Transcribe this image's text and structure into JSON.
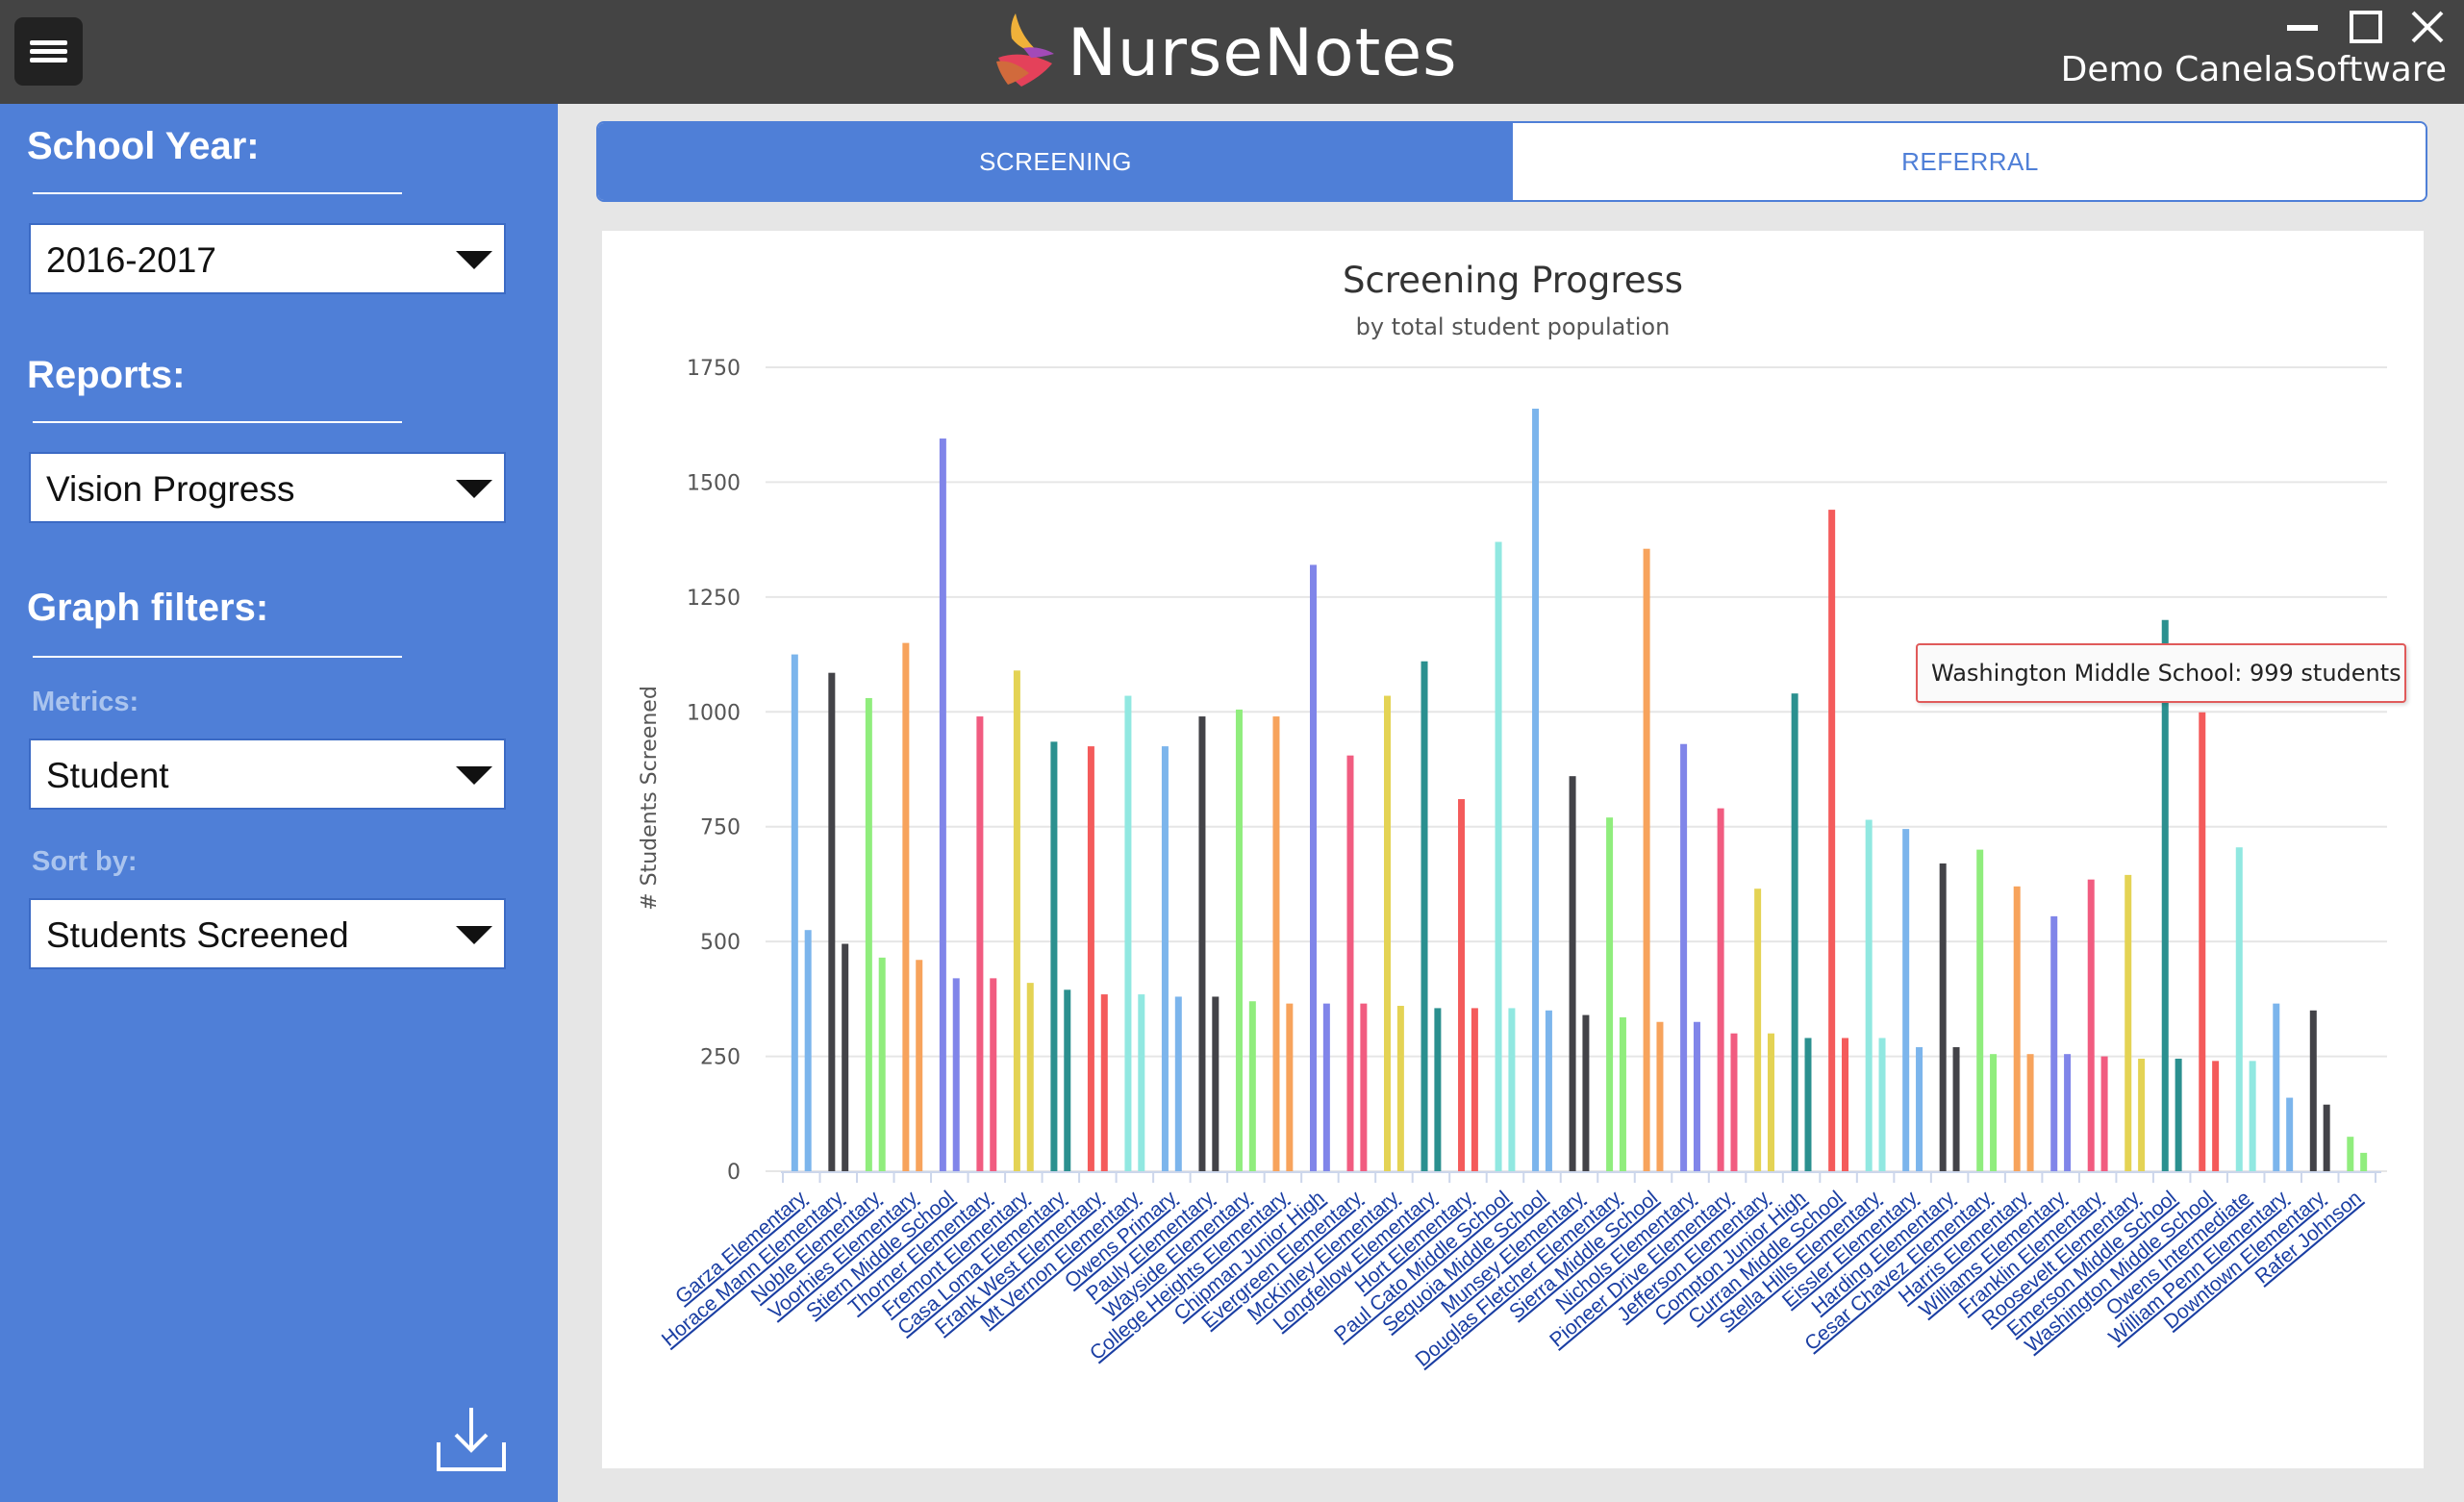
{
  "app": {
    "title": "NurseNotes",
    "user": "Demo CanelaSoftware"
  },
  "sidebar": {
    "school_year_heading": "School Year:",
    "school_year_value": "2016-2017",
    "reports_heading": "Reports:",
    "reports_value": "Vision Progress",
    "graph_filters_heading": "Graph filters:",
    "metrics_label": "Metrics:",
    "metrics_value": "Student",
    "sort_by_label": "Sort by:",
    "sort_by_value": "Students Screened"
  },
  "tabs": {
    "screening": "SCREENING",
    "referral": "REFERRAL",
    "active": "screening"
  },
  "tooltip": {
    "text": "Washington Middle School: 999 students"
  },
  "colors": {
    "titlebar": "#444444",
    "sidebar": "#4f7fd7",
    "accent": "#4f7fd7"
  },
  "chart_data": {
    "type": "bar",
    "title": "Screening Progress",
    "subtitle": "by total student population",
    "ylabel": "# Students Screened",
    "xlabel": "",
    "ylim": [
      0,
      1750
    ],
    "yticks": [
      0,
      250,
      500,
      750,
      1000,
      1250,
      1500,
      1750
    ],
    "grid": true,
    "categories": [
      "Garza Elementary",
      "Horace Mann Elementary",
      "Noble Elementary",
      "Voorhies Elementary",
      "Stiern Middle School",
      "Thorner Elementary",
      "Fremont Elementary",
      "Casa Loma Elementary",
      "Frank West Elementary",
      "Mt Vernon Elementary",
      "Owens Primary",
      "Pauly Elementary",
      "Wayside Elementary",
      "College Heights Elementary",
      "Chipman Junior High",
      "Evergreen Elementary",
      "McKinley Elementary",
      "Longfellow Elementary",
      "Hort Elementary",
      "Paul Cato Middle School",
      "Sequoia Middle School",
      "Munsey Elementary",
      "Douglas Fletcher Elementary",
      "Sierra Middle School",
      "Nichols Elementary",
      "Pioneer Drive Elementary",
      "Jefferson Elementary",
      "Compton Junior High",
      "Curran Middle School",
      "Stella Hills Elementary",
      "Eissler Elementary",
      "Harding Elementary",
      "Cesar Chavez Elementary",
      "Harris Elementary",
      "Williams Elementary",
      "Franklin Elementary",
      "Roosevelt Elementary",
      "Emerson Middle School",
      "Washington Middle School",
      "Owens Intermediate",
      "William Penn Elementary",
      "Downtown Elementary",
      "Rafer Johnson"
    ],
    "series": [
      {
        "values": [
          1125,
          1085,
          1030,
          1150,
          1595,
          990,
          1090,
          935,
          925,
          1035,
          925,
          990,
          1005,
          990,
          1320,
          905,
          1035,
          1110,
          810,
          1370,
          1660,
          860,
          770,
          1355,
          930,
          790,
          615,
          1040,
          1440,
          765,
          745,
          670,
          700,
          620,
          555,
          635,
          645,
          1200,
          999,
          705,
          365,
          350,
          75
        ]
      },
      {
        "values": [
          525,
          495,
          465,
          460,
          420,
          420,
          410,
          395,
          385,
          385,
          380,
          380,
          370,
          365,
          365,
          365,
          360,
          355,
          355,
          355,
          350,
          340,
          335,
          325,
          325,
          300,
          300,
          290,
          290,
          290,
          270,
          270,
          255,
          255,
          255,
          250,
          245,
          245,
          240,
          240,
          160,
          145,
          40
        ]
      }
    ],
    "bar_colors": [
      "#7cb5ec",
      "#434348",
      "#90ed7d",
      "#f7a35c",
      "#8085e9",
      "#f15c80",
      "#e4d354",
      "#2b908f",
      "#f45b5b",
      "#91e8e1"
    ]
  }
}
